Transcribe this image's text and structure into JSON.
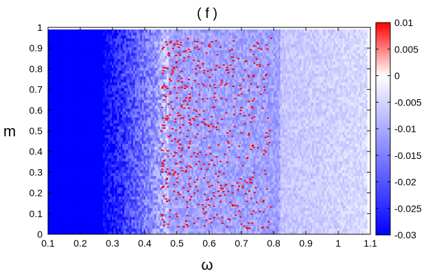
{
  "chart_data": {
    "type": "heatmap",
    "title": "( f )",
    "xlabel": "ω",
    "ylabel": "m",
    "xlim": [
      0.1,
      1.1
    ],
    "ylim": [
      0,
      1
    ],
    "x_ticks": [
      "0.1",
      "0.2",
      "0.3",
      "0.4",
      "0.5",
      "0.6",
      "0.7",
      "0.8",
      "0.9",
      "1",
      "1.1"
    ],
    "y_ticks": [
      "0",
      "0.1",
      "0.2",
      "0.3",
      "0.4",
      "0.5",
      "0.6",
      "0.7",
      "0.8",
      "0.9",
      "1"
    ],
    "data_extent": {
      "x": [
        0.1,
        1.09
      ],
      "y": [
        0,
        0.99
      ]
    },
    "colorbar": {
      "range": [
        -0.03,
        0.01
      ],
      "ticks": [
        "0.01",
        "0.005",
        "0",
        "-0.005",
        "-0.01",
        "-0.015",
        "-0.02",
        "-0.025",
        "-0.03"
      ],
      "colors": {
        "min": "#0000ff",
        "mid": "#ffffff",
        "max": "#ff0000"
      }
    },
    "regions": [
      {
        "description_value": -0.03,
        "x_range": [
          0.1,
          0.27
        ]
      },
      {
        "description_value": -0.015,
        "x_range": [
          0.27,
          0.45
        ]
      },
      {
        "description_value": 0.01,
        "x_range": [
          0.45,
          0.8
        ]
      },
      {
        "description_value": -0.005,
        "x_range": [
          0.8,
          1.09
        ]
      }
    ]
  }
}
